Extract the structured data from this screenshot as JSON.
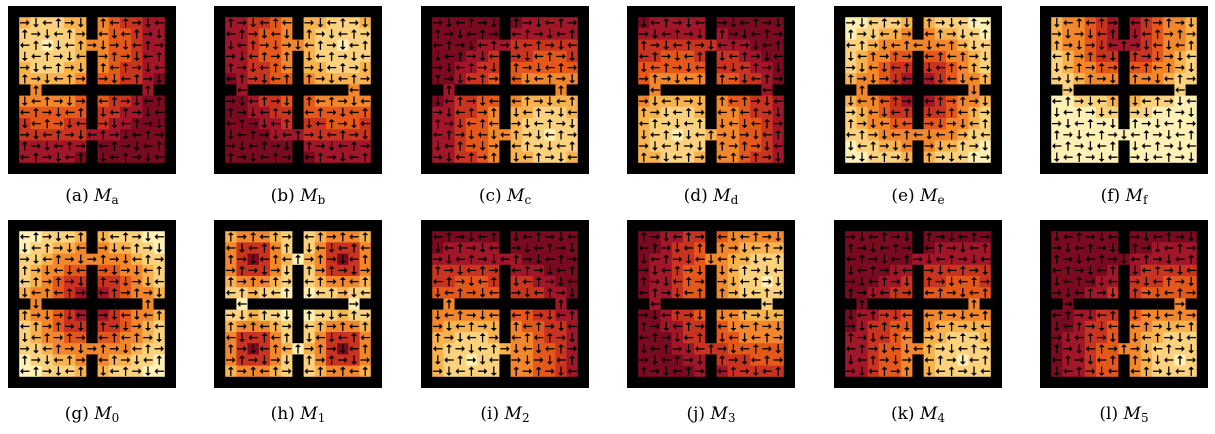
{
  "figure": {
    "panels": [
      {
        "id": "a",
        "tag": "(a)",
        "symbol": "M",
        "sub": "a",
        "pattern": "a"
      },
      {
        "id": "b",
        "tag": "(b)",
        "symbol": "M",
        "sub": "b",
        "pattern": "b"
      },
      {
        "id": "c",
        "tag": "(c)",
        "symbol": "M",
        "sub": "c",
        "pattern": "c"
      },
      {
        "id": "d",
        "tag": "(d)",
        "symbol": "M",
        "sub": "d",
        "pattern": "d"
      },
      {
        "id": "e",
        "tag": "(e)",
        "symbol": "M",
        "sub": "e",
        "pattern": "e"
      },
      {
        "id": "f",
        "tag": "(f)",
        "symbol": "M",
        "sub": "f",
        "pattern": "f"
      },
      {
        "id": "g",
        "tag": "(g)",
        "symbol": "M",
        "sub": "0",
        "pattern": "g"
      },
      {
        "id": "h",
        "tag": "(h)",
        "symbol": "M",
        "sub": "1",
        "pattern": "h"
      },
      {
        "id": "i",
        "tag": "(i)",
        "symbol": "M",
        "sub": "2",
        "pattern": "i"
      },
      {
        "id": "j",
        "tag": "(j)",
        "symbol": "M",
        "sub": "3",
        "pattern": "j"
      },
      {
        "id": "k",
        "tag": "(k)",
        "symbol": "M",
        "sub": "4",
        "pattern": "k"
      },
      {
        "id": "l",
        "tag": "(l)",
        "symbol": "M",
        "sub": "5",
        "pattern": "l"
      }
    ],
    "colormap": [
      "#7a0a1f",
      "#a11729",
      "#c8341f",
      "#e4581c",
      "#f2872d",
      "#f8b24f",
      "#fcd27f",
      "#fff0b5"
    ],
    "wall_color": "#000000"
  }
}
